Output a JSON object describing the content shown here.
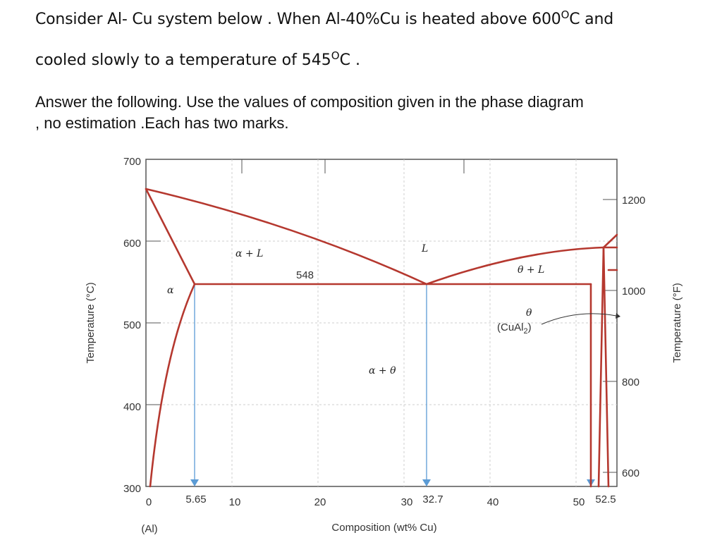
{
  "question": {
    "line1_a": "Consider Al- Cu system below .  When Al-40%Cu is heated above 600",
    "line1_sup": "O",
    "line1_b": "C and",
    "line2_a": "cooled slowly to a temperature of 545",
    "line2_sup": "O",
    "line2_b": "C .",
    "line3": "Answer the following. Use the values of composition given in the phase diagram",
    "line4": ", no estimation .Each has two marks."
  },
  "diagram": {
    "y_axis_label": "Temperature (°C)",
    "y_axis_right_label": "Temperature (°F)",
    "x_axis_label": "Composition (wt% Cu)",
    "x_origin_label": "(Al)",
    "y_ticks": [
      "700",
      "600",
      "500",
      "400",
      "300"
    ],
    "y_ticks_f": [
      "1200",
      "1000",
      "800",
      "600"
    ],
    "x_ticks": [
      "0",
      "5.65",
      "10",
      "20",
      "30",
      "32.7",
      "40",
      "50",
      "52.5"
    ],
    "eutectic_temperature_label": "548",
    "phase_labels": {
      "liquid": "L",
      "alpha": "α",
      "alpha_liquid": "α + L",
      "theta_liquid": "θ + L",
      "alpha_theta": "α + θ",
      "theta": "θ",
      "theta_formula": "(CuAl",
      "theta_formula_sub": "2",
      "theta_formula_end": ")"
    },
    "colors": {
      "phase_boundary": "#b5382f",
      "composition_marker": "#5b9bd5"
    }
  },
  "chart_data": {
    "type": "phase_diagram",
    "system": "Al-Cu",
    "xlabel": "Composition (wt% Cu)",
    "ylabel": "Temperature (°C)",
    "ylabel_right": "Temperature (°F)",
    "xlim": [
      0,
      55
    ],
    "ylim": [
      300,
      700
    ],
    "eutectic": {
      "temperature_C": 548,
      "composition_liquid": 32.7,
      "composition_alpha": 5.65,
      "composition_theta": 52.5
    },
    "liquidus_left": [
      [
        0,
        660
      ],
      [
        32.7,
        548
      ]
    ],
    "liquidus_right": [
      [
        32.7,
        548
      ],
      [
        52.5,
        590
      ]
    ],
    "solidus_alpha": [
      [
        0,
        660
      ],
      [
        5.65,
        548
      ]
    ],
    "solvus_alpha": [
      [
        5.65,
        548
      ],
      [
        0.2,
        300
      ]
    ],
    "theta_field": {
      "left_boundary": [
        [
          52.5,
          548
        ],
        [
          52.5,
          300
        ]
      ],
      "right_boundary": [
        [
          53.8,
          590
        ],
        [
          53.8,
          300
        ]
      ]
    },
    "marked_compositions": [
      5.65,
      32.7,
      52.5
    ]
  }
}
